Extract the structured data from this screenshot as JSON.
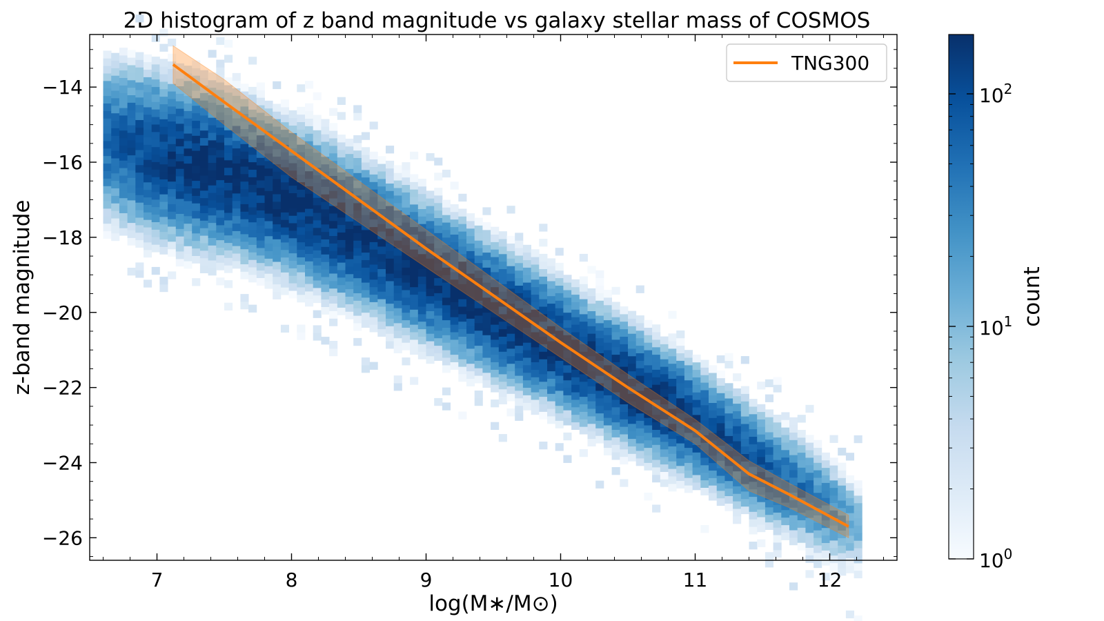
{
  "chart_data": {
    "type": "heatmap",
    "title": "2D histogram of z band magnitude vs galaxy stellar mass of COSMOS",
    "xlabel": "log(M∗/M⊙)",
    "ylabel": "z-band magnitude",
    "xlim": [
      6.5,
      12.5
    ],
    "ylim": [
      -26.6,
      -12.6
    ],
    "y_inverted": true,
    "x_ticks": [
      7,
      8,
      9,
      10,
      11,
      12
    ],
    "y_ticks": [
      -14,
      -16,
      -18,
      -20,
      -22,
      -24,
      -26
    ],
    "grid": false,
    "colorbar": {
      "label": "count",
      "scale": "log",
      "range": [
        1,
        180
      ],
      "tick_values": [
        1,
        10,
        100
      ],
      "tick_labels": [
        {
          "base": "10",
          "exp": "0"
        },
        {
          "base": "10",
          "exp": "1"
        },
        {
          "base": "10",
          "exp": "2"
        }
      ],
      "colormap": [
        "#f7fbff",
        "#deebf7",
        "#c6dbef",
        "#9ecae1",
        "#6baed6",
        "#4292c6",
        "#2171b5",
        "#08519c",
        "#08306b"
      ]
    },
    "histogram": {
      "name": "COSMOS",
      "ridge": {
        "x": [
          6.9,
          7.5,
          8.0,
          8.5,
          9.0,
          9.5,
          10.0,
          10.5,
          11.0,
          11.6,
          12.0
        ],
        "y": [
          -15.8,
          -16.4,
          -17.1,
          -18.0,
          -19.0,
          -20.0,
          -21.0,
          -22.0,
          -23.0,
          -24.4,
          -25.3
        ]
      },
      "peak_count": 180,
      "x_range": [
        6.6,
        12.2
      ]
    },
    "series": [
      {
        "name": "TNG300",
        "color": "#ff7f0e",
        "x": [
          7.12,
          7.5,
          8.0,
          8.5,
          9.0,
          9.5,
          10.0,
          10.5,
          11.0,
          11.4,
          11.7,
          12.14
        ],
        "y": [
          -13.4,
          -14.4,
          -15.7,
          -17.0,
          -18.3,
          -19.55,
          -20.8,
          -22.0,
          -23.15,
          -24.3,
          -24.85,
          -25.7
        ],
        "band_lower": [
          -12.9,
          -13.8,
          -15.2,
          -16.5,
          -17.8,
          -19.1,
          -20.4,
          -21.65,
          -22.85,
          -23.95,
          -24.55,
          -25.4
        ],
        "band_upper": [
          -13.9,
          -15.0,
          -16.4,
          -17.6,
          -18.8,
          -20.0,
          -21.2,
          -22.4,
          -23.5,
          -24.75,
          -25.2,
          -26.0
        ]
      }
    ],
    "legend": {
      "position": "top-right",
      "entries": [
        "TNG300"
      ]
    }
  }
}
